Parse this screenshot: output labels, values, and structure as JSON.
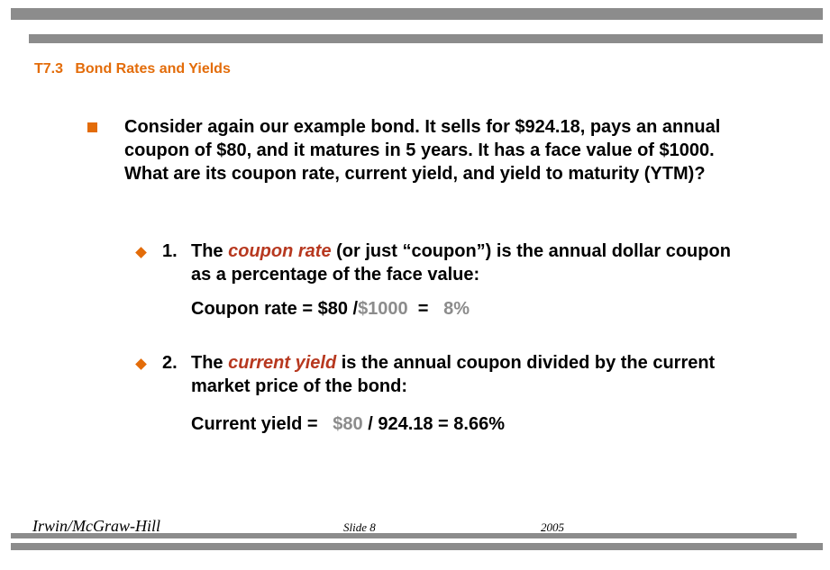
{
  "slide": {
    "title": "T7.3   Bond Rates and Yields",
    "main_bullet": "Consider again our example bond. It sells for $924.18, pays an annual coupon of $80, and it matures in 5 years. It has a face value of $1000. What are its coupon rate, current yield, and yield to maturity (YTM)?",
    "sub1": {
      "number": "1.",
      "pre": "The ",
      "term": "coupon rate",
      "post": " (or just “coupon”) is the annual dollar coupon as a percentage of the face value:",
      "formula_prefix": "Coupon rate = $80 /",
      "formula_gray1": "$1000",
      "formula_mid": "  =  ",
      "formula_gray2": " 8%"
    },
    "sub2": {
      "number": "2.",
      "pre": "The ",
      "term": "current yield",
      "post": " is the annual coupon divided by the current market price of the bond:",
      "formula_prefix": "Current yield =  ",
      "formula_gray": " $80",
      "formula_rest": " / 924.18 = 8.66%"
    }
  },
  "footer": {
    "publisher": "Irwin/McGraw-Hill",
    "slide_number": "Slide 8",
    "year": "2005"
  },
  "colors": {
    "accent": "#e36c09",
    "term": "#b7381f",
    "bars": "#8c8c8c",
    "muted": "#8c8c8c"
  }
}
